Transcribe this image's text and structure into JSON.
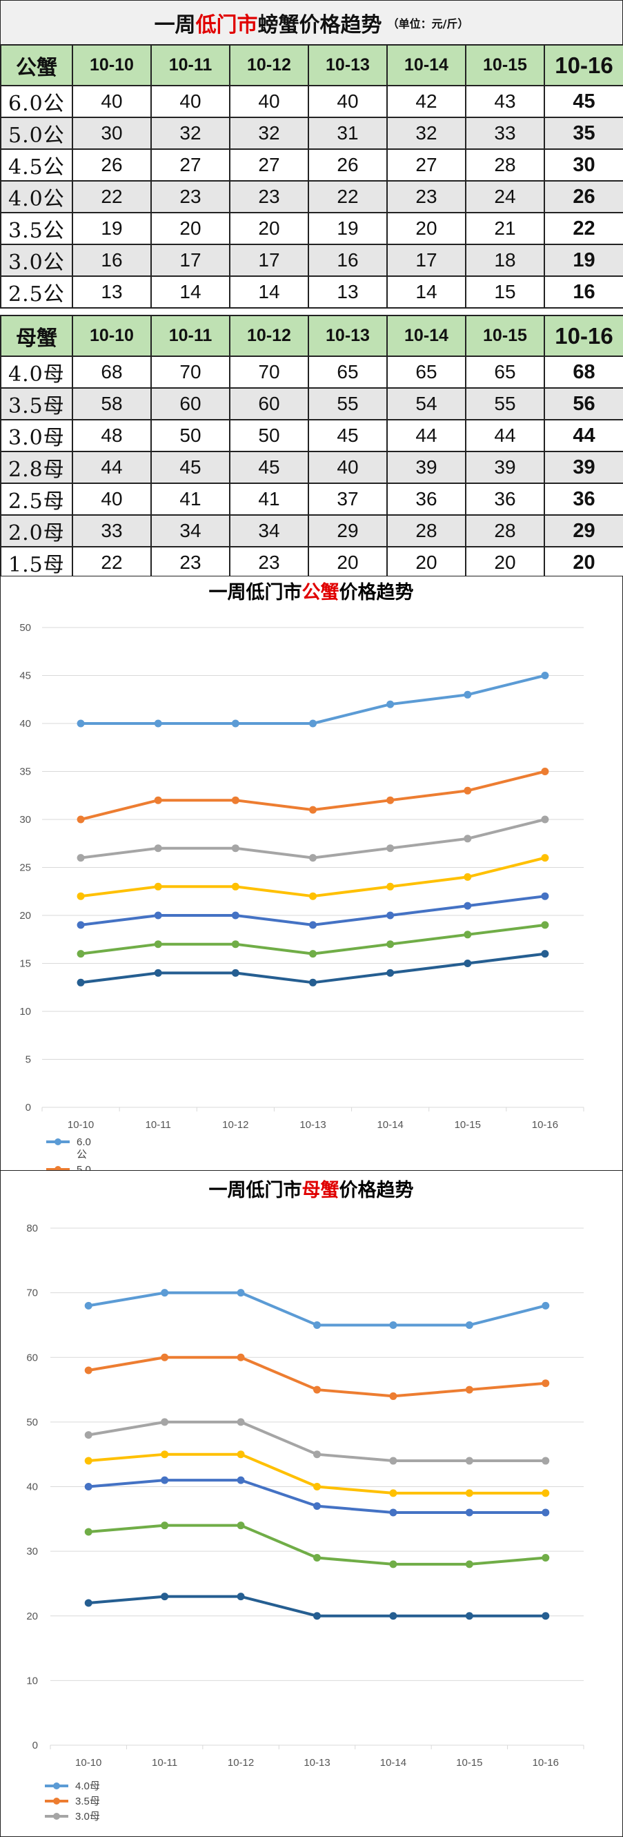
{
  "title": {
    "part1": "一周",
    "part2_red": "低门市",
    "part3": "螃蟹价格趋势",
    "unit": "（单位：元/斤）"
  },
  "dates": [
    "10-10",
    "10-11",
    "10-12",
    "10-13",
    "10-14",
    "10-15",
    "10-16"
  ],
  "male_table": {
    "header_label": "公蟹",
    "rows": [
      {
        "label": "6.0公",
        "values": [
          40,
          40,
          40,
          40,
          42,
          43,
          45
        ]
      },
      {
        "label": "5.0公",
        "values": [
          30,
          32,
          32,
          31,
          32,
          33,
          35
        ]
      },
      {
        "label": "4.5公",
        "values": [
          26,
          27,
          27,
          26,
          27,
          28,
          30
        ]
      },
      {
        "label": "4.0公",
        "values": [
          22,
          23,
          23,
          22,
          23,
          24,
          26
        ]
      },
      {
        "label": "3.5公",
        "values": [
          19,
          20,
          20,
          19,
          20,
          21,
          22
        ]
      },
      {
        "label": "3.0公",
        "values": [
          16,
          17,
          17,
          16,
          17,
          18,
          19
        ]
      },
      {
        "label": "2.5公",
        "values": [
          13,
          14,
          14,
          13,
          14,
          15,
          16
        ]
      }
    ]
  },
  "female_table": {
    "header_label": "母蟹",
    "rows": [
      {
        "label": "4.0母",
        "values": [
          68,
          70,
          70,
          65,
          65,
          65,
          68
        ]
      },
      {
        "label": "3.5母",
        "values": [
          58,
          60,
          60,
          55,
          54,
          55,
          56
        ]
      },
      {
        "label": "3.0母",
        "values": [
          48,
          50,
          50,
          45,
          44,
          44,
          44
        ]
      },
      {
        "label": "2.8母",
        "values": [
          44,
          45,
          45,
          40,
          39,
          39,
          39
        ]
      },
      {
        "label": "2.5母",
        "values": [
          40,
          41,
          41,
          37,
          36,
          36,
          36
        ]
      },
      {
        "label": "2.0母",
        "values": [
          33,
          34,
          34,
          29,
          28,
          28,
          29
        ]
      },
      {
        "label": "1.5母",
        "values": [
          22,
          23,
          23,
          20,
          20,
          20,
          20
        ]
      }
    ]
  },
  "chart_data": [
    {
      "type": "line",
      "title_parts": [
        "一周低门市",
        "公蟹",
        "价格趋势"
      ],
      "x": [
        "10-10",
        "10-11",
        "10-12",
        "10-13",
        "10-14",
        "10-15",
        "10-16"
      ],
      "ylim": [
        0,
        50
      ],
      "yticks": [
        0,
        5,
        10,
        15,
        20,
        25,
        30,
        35,
        40,
        45,
        50
      ],
      "grid": true,
      "legend": "bottom-left",
      "legend_visible": [
        {
          "text_line1": "6.0",
          "text_line2": "公",
          "color": "#5b9bd5"
        },
        {
          "text_line1": "5.0",
          "color": "#ed7d31"
        }
      ],
      "series": [
        {
          "name": "6.0公",
          "color": "#5b9bd5",
          "values": [
            40,
            40,
            40,
            40,
            42,
            43,
            45
          ]
        },
        {
          "name": "5.0公",
          "color": "#ed7d31",
          "values": [
            30,
            32,
            32,
            31,
            32,
            33,
            35
          ]
        },
        {
          "name": "4.5公",
          "color": "#a5a5a5",
          "values": [
            26,
            27,
            27,
            26,
            27,
            28,
            30
          ]
        },
        {
          "name": "4.0公",
          "color": "#ffc000",
          "values": [
            22,
            23,
            23,
            22,
            23,
            24,
            26
          ]
        },
        {
          "name": "3.5公",
          "color": "#4472c4",
          "values": [
            19,
            20,
            20,
            19,
            20,
            21,
            22
          ]
        },
        {
          "name": "3.0公",
          "color": "#70ad47",
          "values": [
            16,
            17,
            17,
            16,
            17,
            18,
            19
          ]
        },
        {
          "name": "2.5公",
          "color": "#255e91",
          "values": [
            13,
            14,
            14,
            13,
            14,
            15,
            16
          ]
        }
      ]
    },
    {
      "type": "line",
      "title_parts": [
        "一周低门市",
        "母蟹",
        "价格趋势"
      ],
      "x": [
        "10-10",
        "10-11",
        "10-12",
        "10-13",
        "10-14",
        "10-15",
        "10-16"
      ],
      "ylim": [
        0,
        80
      ],
      "yticks": [
        0,
        10,
        20,
        30,
        40,
        50,
        60,
        70,
        80
      ],
      "grid": true,
      "legend": "bottom-left",
      "legend_visible": [
        {
          "text_line1": "4.0母",
          "color": "#5b9bd5"
        },
        {
          "text_line1": "3.5母",
          "color": "#ed7d31"
        },
        {
          "text_line1": "3.0母",
          "color": "#a5a5a5"
        }
      ],
      "series": [
        {
          "name": "4.0母",
          "color": "#5b9bd5",
          "values": [
            68,
            70,
            70,
            65,
            65,
            65,
            68
          ]
        },
        {
          "name": "3.5母",
          "color": "#ed7d31",
          "values": [
            58,
            60,
            60,
            55,
            54,
            55,
            56
          ]
        },
        {
          "name": "3.0母",
          "color": "#a5a5a5",
          "values": [
            48,
            50,
            50,
            45,
            44,
            44,
            44
          ]
        },
        {
          "name": "2.8母",
          "color": "#ffc000",
          "values": [
            44,
            45,
            45,
            40,
            39,
            39,
            39
          ]
        },
        {
          "name": "2.5母",
          "color": "#4472c4",
          "values": [
            40,
            41,
            41,
            37,
            36,
            36,
            36
          ]
        },
        {
          "name": "2.0母",
          "color": "#70ad47",
          "values": [
            33,
            34,
            34,
            29,
            28,
            28,
            29
          ]
        },
        {
          "name": "1.5母",
          "color": "#255e91",
          "values": [
            22,
            23,
            23,
            20,
            20,
            20,
            20
          ]
        }
      ]
    }
  ]
}
